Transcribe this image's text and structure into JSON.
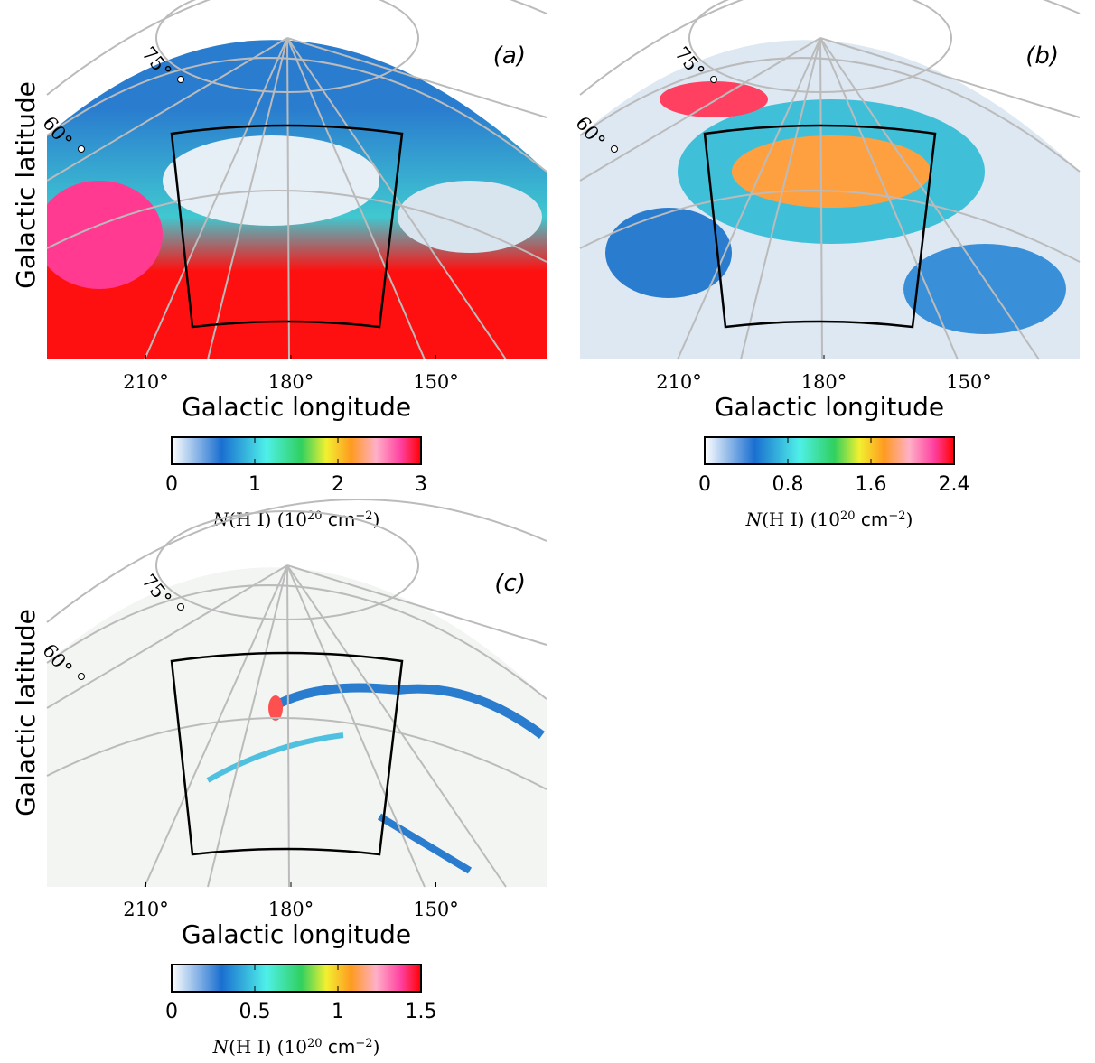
{
  "panels": [
    {
      "label": "(a)",
      "xlabel": "Galactic longitude",
      "ylabel": "Galactic latitude",
      "lon_ticks": [
        {
          "value": 210,
          "label": "210°"
        },
        {
          "value": 180,
          "label": "180°"
        },
        {
          "value": 150,
          "label": "150°"
        }
      ],
      "lat_ticks": [
        {
          "value": 75,
          "label": "75°"
        },
        {
          "value": 60,
          "label": "60°"
        }
      ],
      "colorbar": {
        "range": [
          0,
          3
        ],
        "ticks": [
          0,
          1,
          2,
          3
        ],
        "label": [
          "N",
          "(H I) (10",
          "20",
          " cm",
          "−2",
          ")"
        ]
      }
    },
    {
      "label": "(b)",
      "xlabel": "Galactic longitude",
      "ylabel": "",
      "lon_ticks": [
        {
          "value": 210,
          "label": "210°"
        },
        {
          "value": 180,
          "label": "180°"
        },
        {
          "value": 150,
          "label": "150°"
        }
      ],
      "lat_ticks": [
        {
          "value": 75,
          "label": "75°"
        },
        {
          "value": 60,
          "label": "60°"
        }
      ],
      "colorbar": {
        "range": [
          0,
          2.4
        ],
        "ticks": [
          0,
          0.8,
          1.6,
          2.4
        ],
        "label": [
          "N",
          "(H I) (10",
          "20",
          " cm",
          "−2",
          ")"
        ]
      }
    },
    {
      "label": "(c)",
      "xlabel": "Galactic longitude",
      "ylabel": "Galactic latitude",
      "lon_ticks": [
        {
          "value": 210,
          "label": "210°"
        },
        {
          "value": 180,
          "label": "180°"
        },
        {
          "value": 150,
          "label": "150°"
        }
      ],
      "lat_ticks": [
        {
          "value": 75,
          "label": "75°"
        },
        {
          "value": 60,
          "label": "60°"
        }
      ],
      "colorbar": {
        "range": [
          0,
          1.5
        ],
        "ticks": [
          0,
          0.5,
          1,
          1.5
        ],
        "label": [
          "N",
          "(H I) (10",
          "20",
          " cm",
          "−2",
          ")"
        ]
      }
    }
  ]
}
